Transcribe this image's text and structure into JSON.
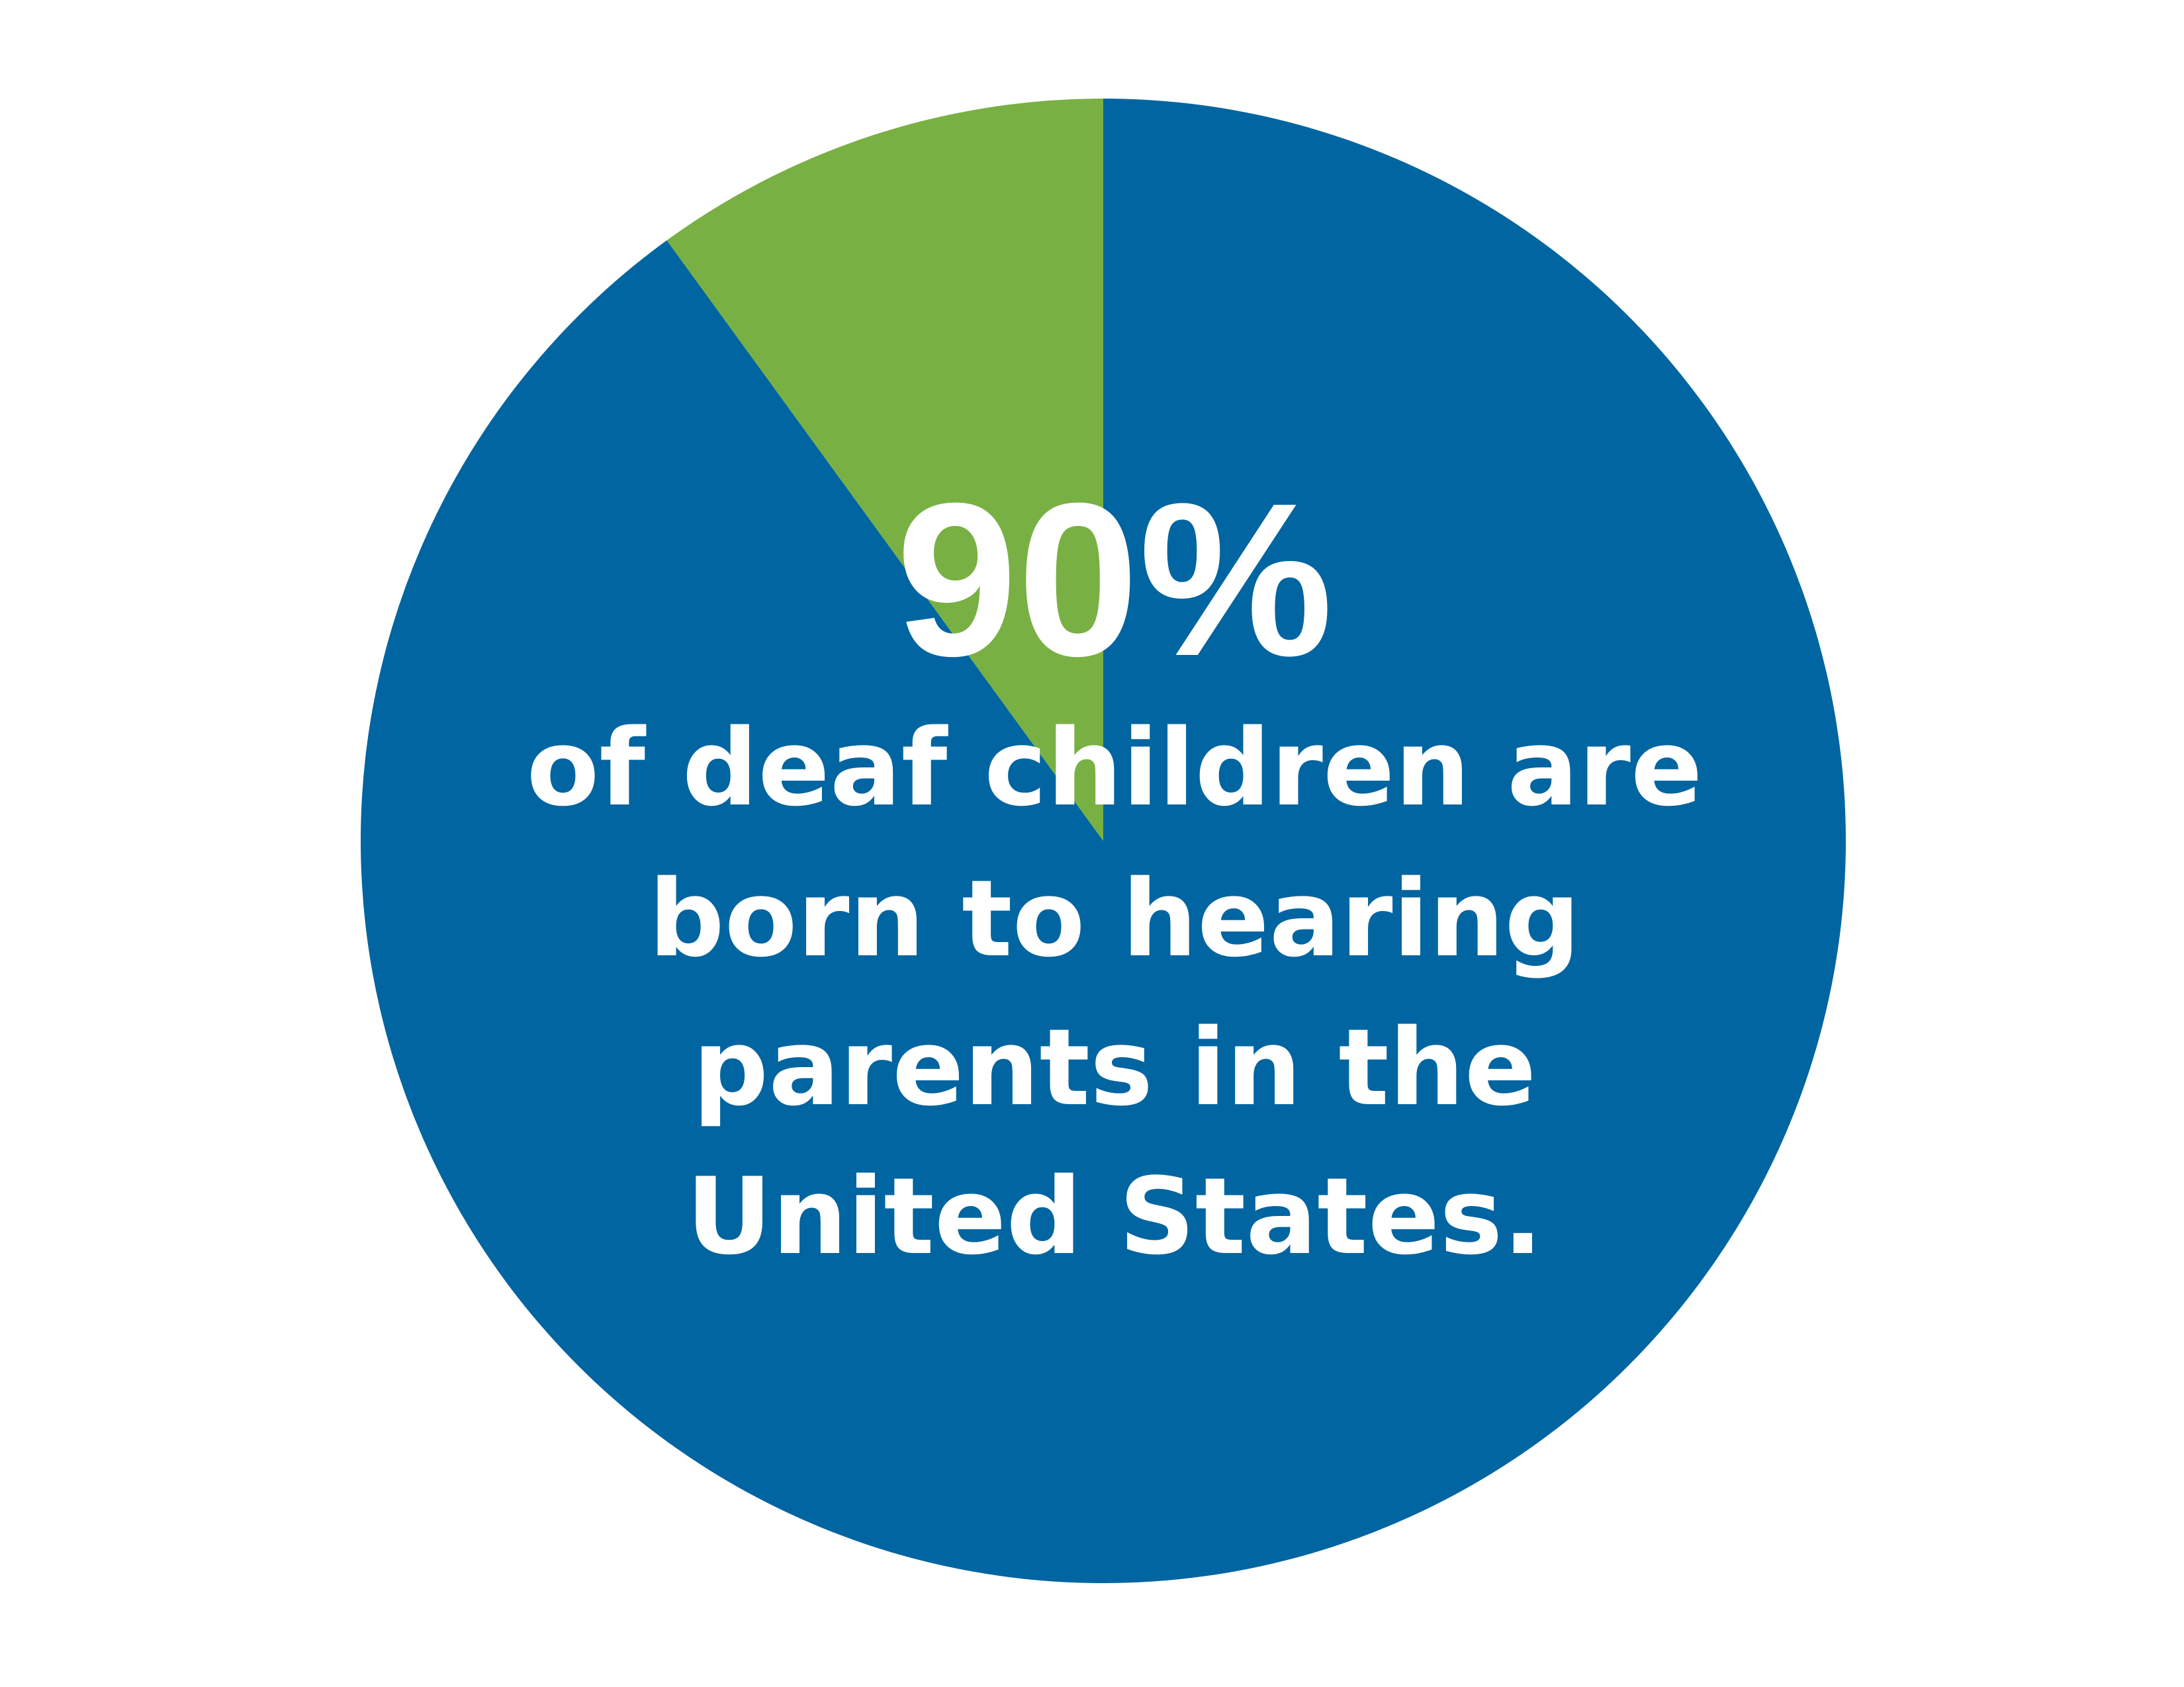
{
  "chart_data": {
    "type": "pie",
    "values": [
      90,
      10
    ],
    "colors": [
      "#0065a0",
      "#79b043"
    ],
    "value_labels": [
      "90%",
      null
    ],
    "annotation": [
      "of deaf children are",
      "born to hearing",
      "parents in the",
      "United States."
    ]
  }
}
